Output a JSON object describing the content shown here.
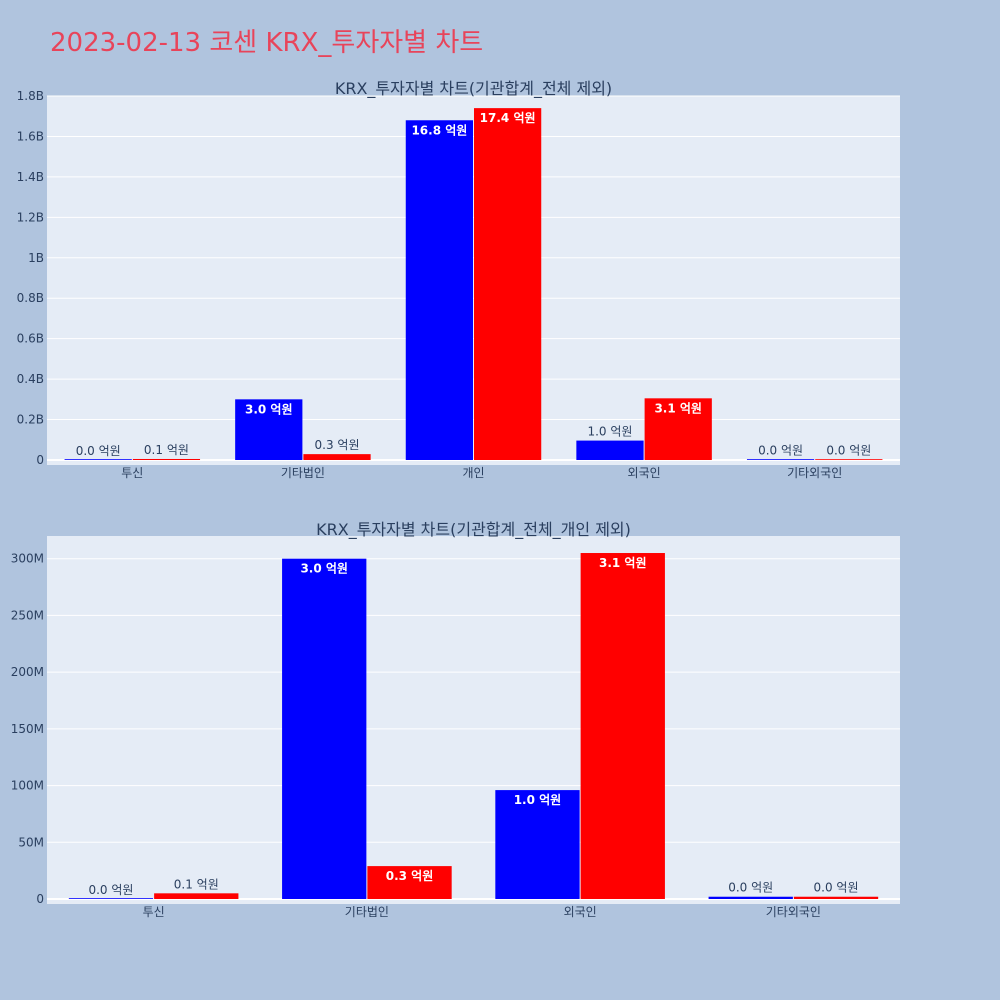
{
  "title": "2023-02-13 코센 KRX_투자자별 차트",
  "colors": {
    "page_bg": "#b0c4de",
    "plot_bg": "#e5ecf6",
    "grid": "#ffffff",
    "title": "#e8445a",
    "series_1": "#0000ff",
    "series_2": "#ff0000"
  },
  "chart_data": [
    {
      "type": "bar",
      "title": "KRX_투자자별 차트(기관합계_전체 제외)",
      "categories": [
        "투신",
        "기타법인",
        "개인",
        "외국인",
        "기타외국인"
      ],
      "series": [
        {
          "values": [
            0,
            300000000,
            1680000000,
            96000000,
            2000000
          ],
          "labels": [
            "0.0 억원",
            "3.0 억원",
            "16.8 억원",
            "1.0 억원",
            "0.0 억원"
          ]
        },
        {
          "values": [
            5000000,
            29000000,
            1740000000,
            305000000,
            2000000
          ],
          "labels": [
            "0.1 억원",
            "0.3 억원",
            "17.4 억원",
            "3.1 억원",
            "0.0 억원"
          ]
        }
      ],
      "ylim": [
        0,
        1800000000
      ],
      "yticks": [
        0,
        200000000,
        400000000,
        600000000,
        800000000,
        1000000000,
        1200000000,
        1400000000,
        1600000000,
        1800000000
      ],
      "ytick_labels": [
        "0",
        "0.2B",
        "0.4B",
        "0.6B",
        "0.8B",
        "1B",
        "1.2B",
        "1.4B",
        "1.6B",
        "1.8B"
      ],
      "grid": true
    },
    {
      "type": "bar",
      "title": "KRX_투자자별 차트(기관합계_전체_개인 제외)",
      "categories": [
        "투신",
        "기타법인",
        "외국인",
        "기타외국인"
      ],
      "series": [
        {
          "values": [
            0,
            300000000,
            96000000,
            2000000
          ],
          "labels": [
            "0.0 억원",
            "3.0 억원",
            "1.0 억원",
            "0.0 억원"
          ]
        },
        {
          "values": [
            5000000,
            29000000,
            305000000,
            2000000
          ],
          "labels": [
            "0.1 억원",
            "0.3 억원",
            "3.1 억원",
            "0.0 억원"
          ]
        }
      ],
      "ylim": [
        0,
        300000000
      ],
      "yticks": [
        0,
        50000000,
        100000000,
        150000000,
        200000000,
        250000000,
        300000000
      ],
      "ytick_labels": [
        "0",
        "50M",
        "100M",
        "150M",
        "200M",
        "250M",
        "300M"
      ],
      "grid": true
    }
  ]
}
